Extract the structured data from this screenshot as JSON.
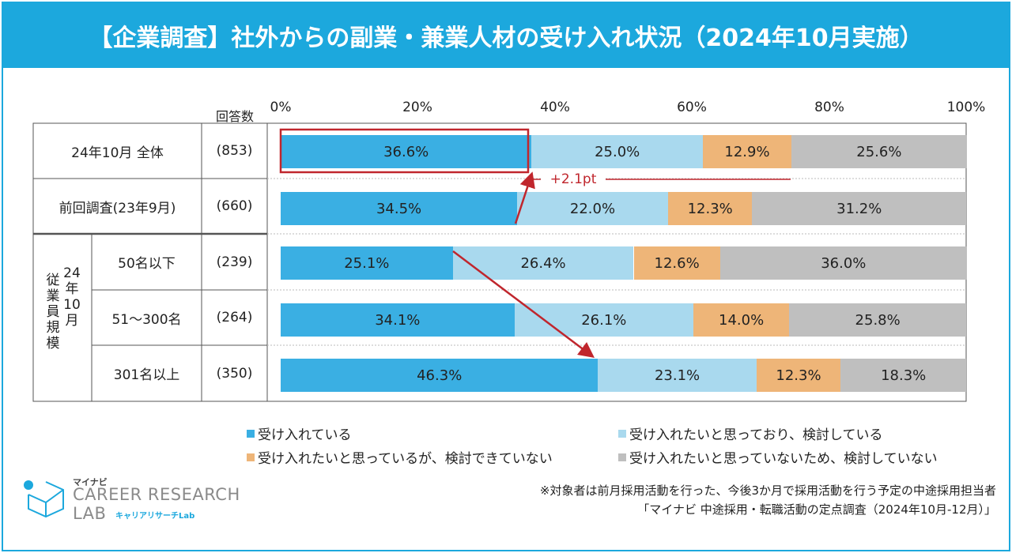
{
  "title": "【企業調査】社外からの副業・兼業人材の受け入れ状況（2024年10月実施）",
  "chart_data": {
    "type": "stacked-bar",
    "orientation": "horizontal",
    "n_header": "回答数",
    "x_ticks": [
      "0%",
      "20%",
      "40%",
      "60%",
      "80%",
      "100%"
    ],
    "xlim": [
      0,
      100
    ],
    "categories": [
      {
        "label": "24年10月 全体",
        "n": "(853)"
      },
      {
        "label": "前回調査(23年9月)",
        "n": "(660)"
      },
      {
        "label": "50名以下",
        "n": "(239)"
      },
      {
        "label": "51～300名",
        "n": "(264)"
      },
      {
        "label": "301名以上",
        "n": "(350)"
      }
    ],
    "group_label_1": "従業員規模",
    "group_label_2": "24年10月",
    "series": [
      {
        "name": "受け入れている",
        "color": "#3aafe3",
        "values": [
          36.6,
          34.5,
          25.1,
          34.1,
          46.3
        ],
        "labels": [
          "36.6%",
          "34.5%",
          "25.1%",
          "34.1%",
          "46.3%"
        ]
      },
      {
        "name": "受け入れたいと思っており、検討している",
        "color": "#a9d9ee",
        "values": [
          25.0,
          22.0,
          26.4,
          26.1,
          23.1
        ],
        "labels": [
          "25.0%",
          "22.0%",
          "26.4%",
          "26.1%",
          "23.1%"
        ]
      },
      {
        "name": "受け入れたいと思っているが、検討できていない",
        "color": "#eeb578",
        "values": [
          12.9,
          12.3,
          12.6,
          14.0,
          12.3
        ],
        "labels": [
          "12.9%",
          "12.3%",
          "12.6%",
          "14.0%",
          "12.3%"
        ]
      },
      {
        "name": "受け入れたいと思っていないため、検討していない",
        "color": "#bfbfbf",
        "values": [
          25.6,
          31.2,
          36.0,
          25.8,
          18.3
        ],
        "labels": [
          "25.6%",
          "31.2%",
          "36.0%",
          "25.8%",
          "18.3%"
        ]
      }
    ],
    "annotation": "+2.1pt",
    "accent_color": "#c0262d"
  },
  "note_line1": "※対象者は前月採用活動を行った、今後3か月で採用活動を行う予定の中途採用担当者",
  "note_line2": "「マイナビ 中途採用・転職活動の定点調査（2024年10月-12月）」",
  "logo": {
    "top": "マイナビ",
    "line1": "CAREER RESEARCH",
    "line2": "LAB",
    "sub": "キャリアリサーチLab"
  }
}
